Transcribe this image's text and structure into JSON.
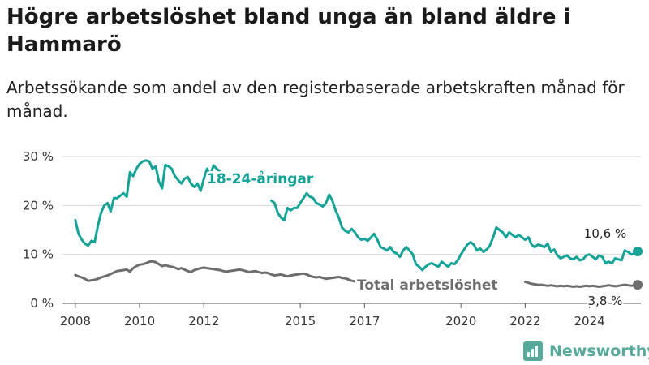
{
  "header": {
    "title": "Högre arbetslöshet bland unga än bland äldre i Hammarö",
    "subtitle": "Arbetssökande som andel av den registerbaserade arbetskraften månad för månad."
  },
  "brand": {
    "name": "Newsworthy",
    "icon": "newsworthy-logo-icon",
    "color": "#57a99c"
  },
  "chart_data": {
    "type": "line",
    "x_unit": "year",
    "xlim": [
      2007.6,
      2025.6
    ],
    "ylim": [
      0,
      30
    ],
    "grid": "horizontal",
    "legend": "inline labels on series",
    "y_ticks": [
      {
        "value": 0,
        "label": "0 %"
      },
      {
        "value": 10,
        "label": "10 %"
      },
      {
        "value": 20,
        "label": "20 %"
      },
      {
        "value": 30,
        "label": "30 %"
      }
    ],
    "x_ticks": [
      {
        "value": 2008,
        "label": "2008"
      },
      {
        "value": 2010,
        "label": "2010"
      },
      {
        "value": 2012,
        "label": "2012"
      },
      {
        "value": 2015,
        "label": "2015"
      },
      {
        "value": 2017,
        "label": "2017"
      },
      {
        "value": 2020,
        "label": "2020"
      },
      {
        "value": 2022,
        "label": "2022"
      },
      {
        "value": 2024,
        "label": "2024"
      }
    ],
    "series": [
      {
        "name": "18-24-åringar",
        "color": "#14a396",
        "end_label": "10,6 %",
        "points": [
          [
            2008.0,
            17.0
          ],
          [
            2008.1,
            14.2
          ],
          [
            2008.2,
            13.0
          ],
          [
            2008.3,
            12.2
          ],
          [
            2008.4,
            11.8
          ],
          [
            2008.5,
            12.8
          ],
          [
            2008.6,
            12.5
          ],
          [
            2008.7,
            15.8
          ],
          [
            2008.8,
            18.5
          ],
          [
            2008.9,
            20.0
          ],
          [
            2009.0,
            20.5
          ],
          [
            2009.1,
            18.8
          ],
          [
            2009.2,
            21.5
          ],
          [
            2009.3,
            21.5
          ],
          [
            2009.4,
            22.0
          ],
          [
            2009.5,
            22.5
          ],
          [
            2009.6,
            21.8
          ],
          [
            2009.7,
            26.8
          ],
          [
            2009.8,
            26.0
          ],
          [
            2009.9,
            27.5
          ],
          [
            2010.0,
            28.5
          ],
          [
            2010.1,
            29.0
          ],
          [
            2010.2,
            29.2
          ],
          [
            2010.3,
            29.0
          ],
          [
            2010.4,
            27.5
          ],
          [
            2010.5,
            28.0
          ],
          [
            2010.6,
            25.0
          ],
          [
            2010.7,
            23.5
          ],
          [
            2010.8,
            28.3
          ],
          [
            2010.9,
            28.0
          ],
          [
            2011.0,
            27.5
          ],
          [
            2011.1,
            26.0
          ],
          [
            2011.2,
            25.2
          ],
          [
            2011.3,
            24.5
          ],
          [
            2011.4,
            25.5
          ],
          [
            2011.5,
            25.8
          ],
          [
            2011.6,
            24.5
          ],
          [
            2011.7,
            23.8
          ],
          [
            2011.8,
            24.5
          ],
          [
            2011.9,
            23.0
          ],
          [
            2012.0,
            25.5
          ],
          [
            2012.1,
            27.5
          ],
          [
            2012.2,
            26.2
          ],
          [
            2012.3,
            28.2
          ],
          [
            2012.4,
            27.5
          ],
          [
            2012.5,
            27.0
          ],
          [
            2014.1,
            21.0
          ],
          [
            2014.2,
            20.5
          ],
          [
            2014.3,
            18.5
          ],
          [
            2014.4,
            17.5
          ],
          [
            2014.5,
            17.0
          ],
          [
            2014.6,
            19.5
          ],
          [
            2014.7,
            19.0
          ],
          [
            2014.8,
            19.5
          ],
          [
            2014.9,
            19.5
          ],
          [
            2015.0,
            20.5
          ],
          [
            2015.1,
            21.5
          ],
          [
            2015.2,
            22.5
          ],
          [
            2015.3,
            21.8
          ],
          [
            2015.4,
            21.5
          ],
          [
            2015.5,
            20.5
          ],
          [
            2015.6,
            20.2
          ],
          [
            2015.7,
            19.8
          ],
          [
            2015.8,
            20.5
          ],
          [
            2015.9,
            22.2
          ],
          [
            2016.0,
            21.0
          ],
          [
            2016.1,
            19.0
          ],
          [
            2016.2,
            17.5
          ],
          [
            2016.3,
            15.5
          ],
          [
            2016.4,
            14.8
          ],
          [
            2016.5,
            14.5
          ],
          [
            2016.6,
            15.2
          ],
          [
            2016.7,
            14.5
          ],
          [
            2016.8,
            13.5
          ],
          [
            2016.9,
            13.0
          ],
          [
            2017.0,
            13.2
          ],
          [
            2017.1,
            12.8
          ],
          [
            2017.2,
            13.5
          ],
          [
            2017.3,
            14.2
          ],
          [
            2017.4,
            13.0
          ],
          [
            2017.5,
            11.5
          ],
          [
            2017.6,
            11.2
          ],
          [
            2017.7,
            10.8
          ],
          [
            2017.8,
            11.5
          ],
          [
            2017.9,
            10.5
          ],
          [
            2018.0,
            10.2
          ],
          [
            2018.1,
            9.5
          ],
          [
            2018.2,
            10.8
          ],
          [
            2018.3,
            11.5
          ],
          [
            2018.4,
            10.8
          ],
          [
            2018.5,
            10.0
          ],
          [
            2018.6,
            8.0
          ],
          [
            2018.7,
            7.5
          ],
          [
            2018.8,
            6.8
          ],
          [
            2018.9,
            7.5
          ],
          [
            2019.0,
            8.0
          ],
          [
            2019.1,
            8.2
          ],
          [
            2019.2,
            7.8
          ],
          [
            2019.3,
            7.5
          ],
          [
            2019.4,
            8.5
          ],
          [
            2019.5,
            8.0
          ],
          [
            2019.6,
            7.5
          ],
          [
            2019.7,
            8.2
          ],
          [
            2019.8,
            8.0
          ],
          [
            2019.9,
            8.8
          ],
          [
            2020.0,
            10.0
          ],
          [
            2020.1,
            11.0
          ],
          [
            2020.2,
            12.0
          ],
          [
            2020.3,
            12.5
          ],
          [
            2020.4,
            12.0
          ],
          [
            2020.5,
            10.8
          ],
          [
            2020.6,
            11.2
          ],
          [
            2020.7,
            10.5
          ],
          [
            2020.8,
            11.0
          ],
          [
            2020.9,
            11.8
          ],
          [
            2021.0,
            13.5
          ],
          [
            2021.1,
            15.5
          ],
          [
            2021.2,
            15.0
          ],
          [
            2021.3,
            14.5
          ],
          [
            2021.4,
            13.5
          ],
          [
            2021.5,
            14.5
          ],
          [
            2021.6,
            14.0
          ],
          [
            2021.7,
            13.5
          ],
          [
            2021.8,
            14.0
          ],
          [
            2021.9,
            13.5
          ],
          [
            2022.0,
            13.0
          ],
          [
            2022.1,
            13.5
          ],
          [
            2022.2,
            12.0
          ],
          [
            2022.3,
            11.5
          ],
          [
            2022.4,
            12.0
          ],
          [
            2022.5,
            11.8
          ],
          [
            2022.6,
            11.5
          ],
          [
            2022.7,
            12.2
          ],
          [
            2022.8,
            10.5
          ],
          [
            2022.9,
            11.0
          ],
          [
            2023.0,
            9.8
          ],
          [
            2023.1,
            9.2
          ],
          [
            2023.2,
            9.5
          ],
          [
            2023.3,
            9.8
          ],
          [
            2023.4,
            9.2
          ],
          [
            2023.5,
            9.0
          ],
          [
            2023.6,
            9.5
          ],
          [
            2023.7,
            8.8
          ],
          [
            2023.8,
            9.0
          ],
          [
            2023.9,
            9.8
          ],
          [
            2024.0,
            10.0
          ],
          [
            2024.1,
            9.5
          ],
          [
            2024.2,
            9.0
          ],
          [
            2024.3,
            9.8
          ],
          [
            2024.4,
            9.5
          ],
          [
            2024.5,
            8.2
          ],
          [
            2024.6,
            8.5
          ],
          [
            2024.7,
            8.2
          ],
          [
            2024.8,
            9.2
          ],
          [
            2024.9,
            9.0
          ],
          [
            2025.0,
            8.8
          ],
          [
            2025.1,
            10.8
          ],
          [
            2025.2,
            10.5
          ],
          [
            2025.3,
            10.0
          ],
          [
            2025.4,
            10.2
          ],
          [
            2025.5,
            10.6
          ]
        ]
      },
      {
        "name": "Total arbetslöshet",
        "color": "#6d6d6d",
        "end_label": "3,8 %",
        "points": [
          [
            2008.0,
            5.8
          ],
          [
            2008.1,
            5.5
          ],
          [
            2008.2,
            5.3
          ],
          [
            2008.3,
            5.0
          ],
          [
            2008.4,
            4.6
          ],
          [
            2008.5,
            4.7
          ],
          [
            2008.6,
            4.8
          ],
          [
            2008.7,
            5.0
          ],
          [
            2008.8,
            5.3
          ],
          [
            2008.9,
            5.5
          ],
          [
            2009.0,
            5.7
          ],
          [
            2009.1,
            6.0
          ],
          [
            2009.2,
            6.3
          ],
          [
            2009.3,
            6.6
          ],
          [
            2009.4,
            6.7
          ],
          [
            2009.5,
            6.8
          ],
          [
            2009.6,
            6.9
          ],
          [
            2009.7,
            6.5
          ],
          [
            2009.8,
            7.2
          ],
          [
            2009.9,
            7.6
          ],
          [
            2010.0,
            7.9
          ],
          [
            2010.1,
            8.0
          ],
          [
            2010.2,
            8.2
          ],
          [
            2010.3,
            8.5
          ],
          [
            2010.4,
            8.6
          ],
          [
            2010.5,
            8.4
          ],
          [
            2010.6,
            8.0
          ],
          [
            2010.7,
            7.6
          ],
          [
            2010.8,
            7.8
          ],
          [
            2010.9,
            7.6
          ],
          [
            2011.0,
            7.5
          ],
          [
            2011.1,
            7.3
          ],
          [
            2011.2,
            7.0
          ],
          [
            2011.3,
            7.2
          ],
          [
            2011.4,
            6.9
          ],
          [
            2011.5,
            6.6
          ],
          [
            2011.6,
            6.4
          ],
          [
            2011.7,
            6.8
          ],
          [
            2011.8,
            7.0
          ],
          [
            2011.9,
            7.2
          ],
          [
            2012.0,
            7.3
          ],
          [
            2012.1,
            7.2
          ],
          [
            2012.2,
            7.1
          ],
          [
            2012.3,
            7.0
          ],
          [
            2012.4,
            6.9
          ],
          [
            2012.5,
            6.8
          ],
          [
            2012.6,
            6.6
          ],
          [
            2012.7,
            6.5
          ],
          [
            2012.8,
            6.6
          ],
          [
            2012.9,
            6.7
          ],
          [
            2013.0,
            6.8
          ],
          [
            2013.1,
            6.9
          ],
          [
            2013.2,
            6.8
          ],
          [
            2013.3,
            6.6
          ],
          [
            2013.4,
            6.4
          ],
          [
            2013.5,
            6.5
          ],
          [
            2013.6,
            6.6
          ],
          [
            2013.7,
            6.4
          ],
          [
            2013.8,
            6.2
          ],
          [
            2013.9,
            6.3
          ],
          [
            2014.0,
            6.2
          ],
          [
            2014.1,
            5.9
          ],
          [
            2014.2,
            5.7
          ],
          [
            2014.3,
            5.8
          ],
          [
            2014.4,
            5.9
          ],
          [
            2014.5,
            5.7
          ],
          [
            2014.6,
            5.5
          ],
          [
            2014.7,
            5.7
          ],
          [
            2014.8,
            5.8
          ],
          [
            2014.9,
            5.9
          ],
          [
            2015.0,
            6.0
          ],
          [
            2015.1,
            6.1
          ],
          [
            2015.2,
            5.9
          ],
          [
            2015.3,
            5.6
          ],
          [
            2015.4,
            5.4
          ],
          [
            2015.5,
            5.3
          ],
          [
            2015.6,
            5.4
          ],
          [
            2015.7,
            5.2
          ],
          [
            2015.8,
            5.0
          ],
          [
            2015.9,
            5.1
          ],
          [
            2016.0,
            5.2
          ],
          [
            2016.1,
            5.3
          ],
          [
            2016.2,
            5.4
          ],
          [
            2016.3,
            5.2
          ],
          [
            2016.4,
            5.1
          ],
          [
            2016.5,
            4.9
          ],
          [
            2016.6,
            4.6
          ],
          [
            2016.7,
            4.5
          ],
          [
            2022.0,
            4.4
          ],
          [
            2022.1,
            4.2
          ],
          [
            2022.2,
            4.0
          ],
          [
            2022.3,
            3.9
          ],
          [
            2022.4,
            3.8
          ],
          [
            2022.5,
            3.8
          ],
          [
            2022.6,
            3.7
          ],
          [
            2022.7,
            3.6
          ],
          [
            2022.8,
            3.7
          ],
          [
            2022.9,
            3.6
          ],
          [
            2023.0,
            3.5
          ],
          [
            2023.1,
            3.6
          ],
          [
            2023.2,
            3.5
          ],
          [
            2023.3,
            3.6
          ],
          [
            2023.4,
            3.5
          ],
          [
            2023.5,
            3.4
          ],
          [
            2023.6,
            3.5
          ],
          [
            2023.7,
            3.4
          ],
          [
            2023.8,
            3.5
          ],
          [
            2023.9,
            3.6
          ],
          [
            2024.0,
            3.5
          ],
          [
            2024.1,
            3.6
          ],
          [
            2024.2,
            3.5
          ],
          [
            2024.3,
            3.4
          ],
          [
            2024.4,
            3.5
          ],
          [
            2024.5,
            3.6
          ],
          [
            2024.6,
            3.7
          ],
          [
            2024.7,
            3.6
          ],
          [
            2024.8,
            3.5
          ],
          [
            2024.9,
            3.6
          ],
          [
            2025.0,
            3.7
          ],
          [
            2025.1,
            3.8
          ],
          [
            2025.2,
            3.7
          ],
          [
            2025.3,
            3.6
          ],
          [
            2025.4,
            3.7
          ],
          [
            2025.5,
            3.8
          ]
        ]
      }
    ]
  }
}
